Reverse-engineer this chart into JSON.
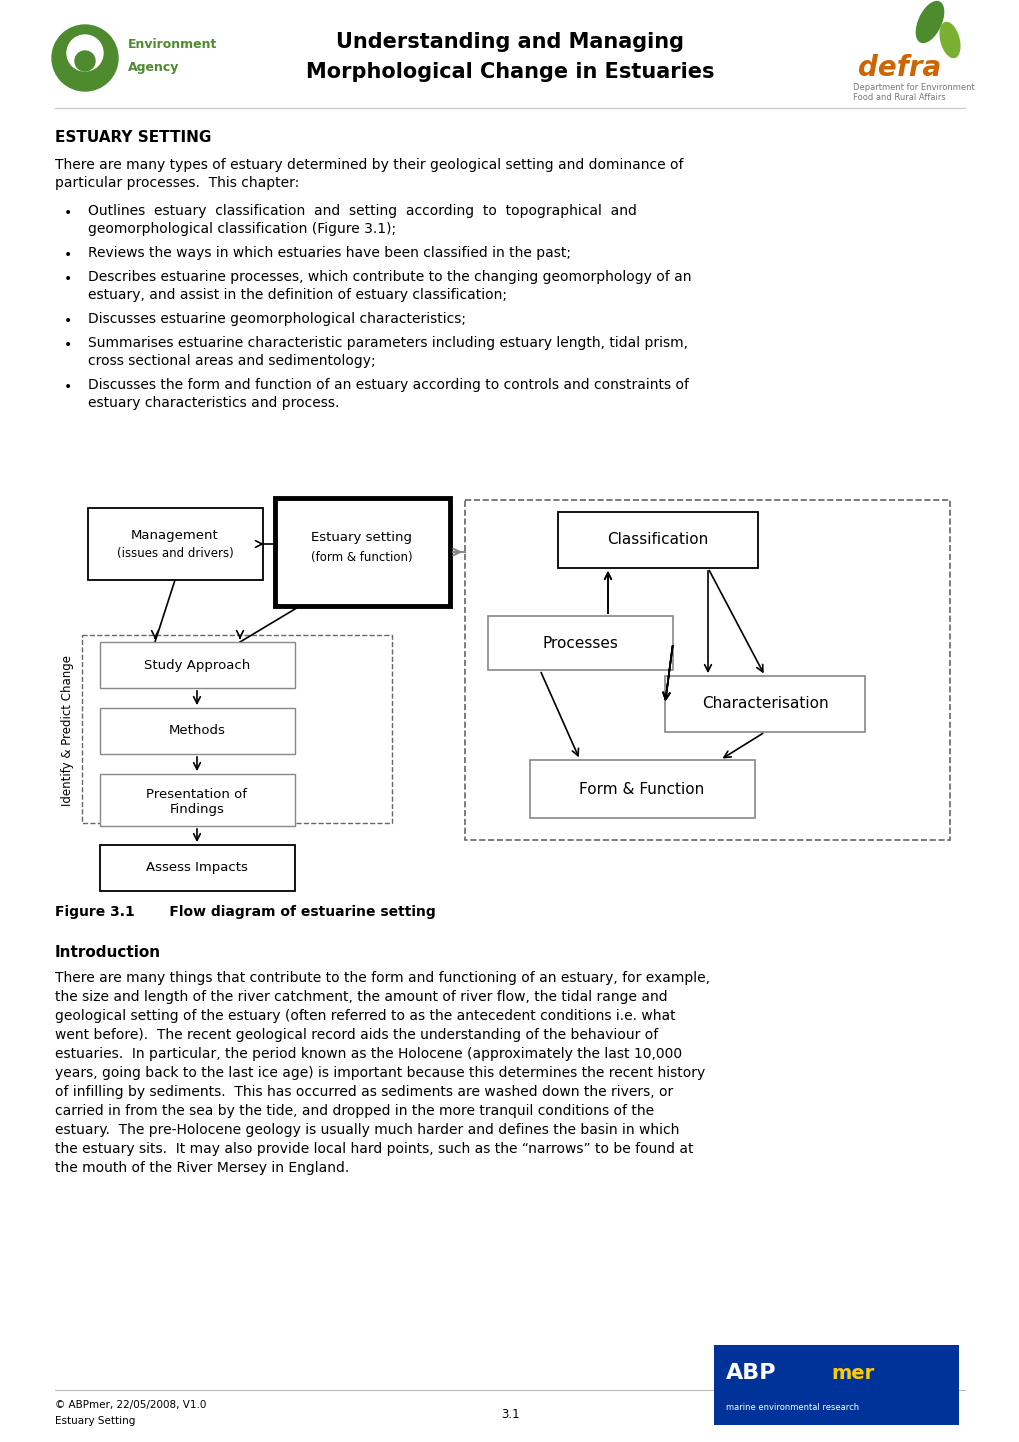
{
  "page_title_line1": "Understanding and Managing",
  "page_title_line2": "Morphological Change in Estuaries",
  "section_title": "ESTUARY SETTING",
  "intro_text_l1": "There are many types of estuary determined by their geological setting and dominance of",
  "intro_text_l2": "particular processes.  This chapter:",
  "bullets": [
    [
      "Outlines  estuary  classification  and  setting  according  to  topographical  and",
      "geomorphological classification (Figure 3.1);"
    ],
    [
      "Reviews the ways in which estuaries have been classified in the past;"
    ],
    [
      "Describes estuarine processes, which contribute to the changing geomorphology of an",
      "estuary, and assist in the definition of estuary classification;"
    ],
    [
      "Discusses estuarine geomorphological characteristics;"
    ],
    [
      "Summarises estuarine characteristic parameters including estuary length, tidal prism,",
      "cross sectional areas and sedimentology;"
    ],
    [
      "Discusses the form and function of an estuary according to controls and constraints of",
      "estuary characteristics and process."
    ]
  ],
  "fig_label": "Figure 3.1",
  "fig_caption": "     Flow diagram of estuarine setting",
  "intro_heading": "Introduction",
  "intro_body": [
    "There are many things that contribute to the form and functioning of an estuary, for example,",
    "the size and length of the river catchment, the amount of river flow, the tidal range and",
    "geological setting of the estuary (often referred to as the antecedent conditions i.e. what",
    "went before).  The recent geological record aids the understanding of the behaviour of",
    "estuaries.  In particular, the period known as the Holocene (approximately the last 10,000",
    "years, going back to the last ice age) is important because this determines the recent history",
    "of infilling by sediments.  This has occurred as sediments are washed down the rivers, or",
    "carried in from the sea by the tide, and dropped in the more tranquil conditions of the",
    "estuary.  The pre-Holocene geology is usually much harder and defines the basin in which",
    "the estuary sits.  It may also provide local hard points, such as the “narrows” to be found at",
    "the mouth of the River Mersey in England."
  ],
  "footer_copy": "© ABPmer, 22/05/2008, V1.0",
  "footer_sub": "Estuary Setting",
  "footer_page": "3.1",
  "bg": "#ffffff",
  "black": "#000000",
  "gray": "#888888",
  "dash_color": "#666666",
  "green_dark": "#4d8b2e",
  "green_light": "#7ab032",
  "orange": "#cc6600"
}
